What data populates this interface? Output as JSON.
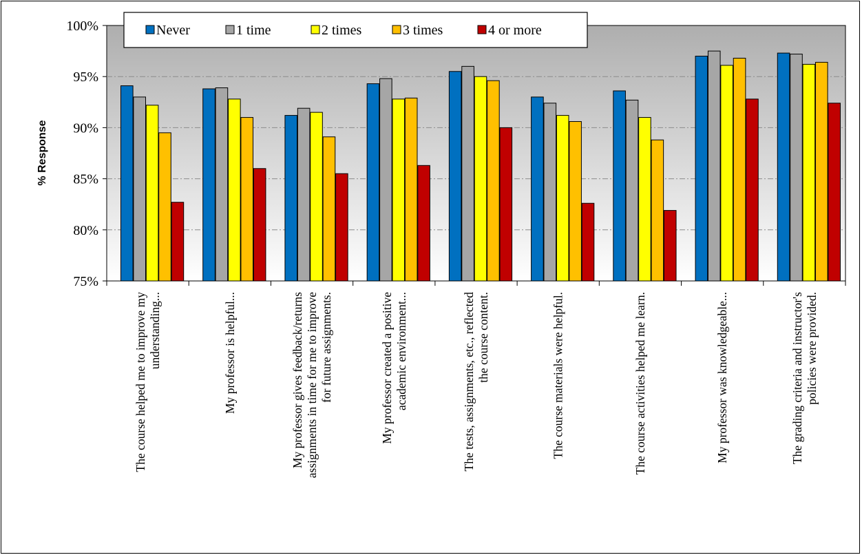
{
  "chart_data": {
    "type": "bar",
    "title": "",
    "xlabel": "",
    "ylabel": "% Response",
    "ylim": [
      75,
      100
    ],
    "yticks": [
      "75%",
      "80%",
      "85%",
      "90%",
      "95%",
      "100%"
    ],
    "grid": "horizontal dash-dot",
    "legend_position": "top",
    "categories": [
      [
        "The course helped me to improve my",
        "understanding..."
      ],
      [
        "My professor is helpful..."
      ],
      [
        "My professor gives feedback/returns",
        "assignments in time for me to improve",
        "for future assignments."
      ],
      [
        "My professor created a positive",
        "academic environment..."
      ],
      [
        "The tests, assignments, etc., reflected",
        "the course content."
      ],
      [
        "The course materials were helpful."
      ],
      [
        "The course activities helped me learn."
      ],
      [
        "My professor was knowledgeable..."
      ],
      [
        "The grading criteria and instructor's",
        "policies were provided."
      ]
    ],
    "series": [
      {
        "name": "Never",
        "color": "#0070C0",
        "values": [
          94.1,
          93.8,
          91.2,
          94.3,
          95.5,
          93.0,
          93.6,
          97.0,
          97.3
        ]
      },
      {
        "name": "1 time",
        "color": "#A6A6A6",
        "values": [
          93.0,
          93.9,
          91.9,
          94.8,
          96.0,
          92.4,
          92.7,
          97.5,
          97.2
        ]
      },
      {
        "name": "2 times",
        "color": "#FFFF00",
        "values": [
          92.2,
          92.8,
          91.5,
          92.8,
          95.0,
          91.2,
          91.0,
          96.1,
          96.2
        ]
      },
      {
        "name": "3 times",
        "color": "#FFC000",
        "values": [
          89.5,
          91.0,
          89.1,
          92.9,
          94.6,
          90.6,
          88.8,
          96.8,
          96.4
        ]
      },
      {
        "name": "4 or more",
        "color": "#C00000",
        "values": [
          82.7,
          86.0,
          85.5,
          86.3,
          90.0,
          82.6,
          81.9,
          92.8,
          92.4
        ]
      }
    ]
  }
}
